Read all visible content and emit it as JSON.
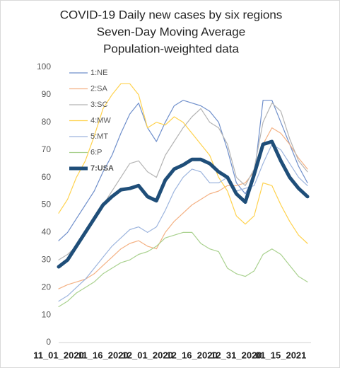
{
  "chart_data": {
    "type": "line",
    "title_lines": [
      "COVID-19 Daily new cases by six regions",
      "Seven-Day Moving Average",
      "Population-weighted data"
    ],
    "categories": [
      "11_01_2020",
      null,
      null,
      null,
      null,
      "11_16_2020",
      null,
      null,
      null,
      null,
      "12_01_2020",
      null,
      null,
      null,
      null,
      "12_16_2020",
      null,
      null,
      null,
      null,
      "12_31_2020",
      null,
      null,
      null,
      null,
      "01_15_2021",
      null,
      null,
      null
    ],
    "ylim": [
      0,
      100
    ],
    "yticks": [
      0,
      10,
      20,
      30,
      40,
      50,
      60,
      70,
      80,
      90,
      100
    ],
    "grid": false,
    "legend": "top-left",
    "series": [
      {
        "name": "1:NE",
        "color": "#6f8fcb",
        "line_width": 1.2,
        "values": [
          37,
          40,
          45,
          50,
          55,
          62,
          68,
          76,
          83,
          87,
          78,
          73,
          80,
          86,
          88,
          87,
          86,
          84,
          80,
          70,
          58,
          54,
          60,
          88,
          88,
          80,
          72,
          64,
          58
        ]
      },
      {
        "name": "2:SA",
        "color": "#f4b183",
        "line_width": 1.2,
        "values": [
          19.5,
          21,
          22,
          23,
          25,
          28,
          31,
          34,
          36,
          37,
          35,
          34,
          40,
          44,
          47,
          50,
          52,
          54,
          55,
          57,
          57,
          58,
          62,
          72,
          78,
          76,
          72,
          67,
          63
        ]
      },
      {
        "name": "3:SC",
        "color": "#b4b4b4",
        "line_width": 1.2,
        "values": [
          30,
          32,
          35,
          40,
          45,
          50,
          55,
          60,
          65,
          66,
          62,
          60,
          68,
          73,
          78,
          82,
          85,
          80,
          78,
          72,
          60,
          57,
          63,
          80,
          87,
          84,
          74,
          66,
          62
        ]
      },
      {
        "name": "4:MW",
        "color": "#ffd24d",
        "line_width": 1.2,
        "values": [
          47,
          52,
          60,
          66,
          75,
          85,
          90,
          94,
          94,
          90,
          78,
          80,
          79,
          82,
          80,
          76,
          72,
          68,
          60,
          55,
          46,
          43,
          46,
          58,
          57,
          50,
          44,
          39,
          36
        ]
      },
      {
        "name": "5:MT",
        "color": "#9db5de",
        "line_width": 1.2,
        "values": [
          15,
          17,
          20,
          23,
          27,
          31,
          35,
          38,
          41,
          42,
          40,
          42,
          48,
          55,
          60,
          63,
          62,
          58,
          58,
          60,
          55,
          56,
          57,
          65,
          72,
          70,
          65,
          60,
          57
        ]
      },
      {
        "name": "6:P",
        "color": "#a9d18e",
        "line_width": 1.2,
        "values": [
          13,
          15,
          18,
          20,
          22,
          25,
          27,
          29,
          30,
          32,
          33,
          35,
          38,
          39,
          40,
          40,
          36,
          34,
          33,
          27,
          25,
          24,
          26,
          32,
          34,
          32,
          28,
          24,
          22
        ]
      },
      {
        "name": "7:USA",
        "color": "#1f4e79",
        "line_width": 5,
        "values": [
          27.5,
          30,
          35,
          40,
          45,
          50,
          53,
          55.5,
          56,
          57,
          53,
          51.5,
          59,
          63,
          64.5,
          66.5,
          66.5,
          65,
          62,
          60,
          54,
          51,
          61,
          72,
          73,
          66,
          60,
          56,
          53
        ]
      }
    ]
  }
}
